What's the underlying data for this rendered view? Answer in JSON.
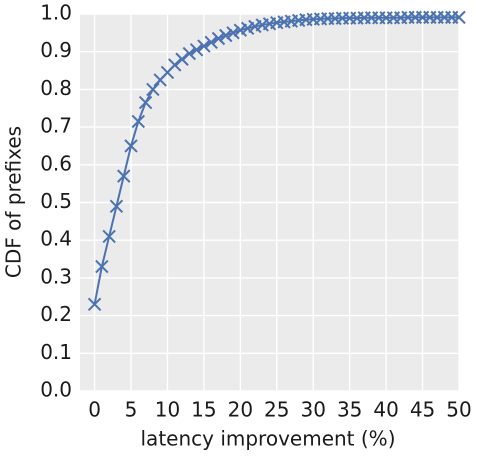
{
  "chart_data": {
    "type": "line",
    "x_label": "latency improvement (%)",
    "y_label": "CDF of prefixes",
    "x": [
      0,
      1,
      2,
      3,
      4,
      5,
      6,
      7,
      8,
      9,
      10,
      11,
      12,
      13,
      14,
      15,
      16,
      17,
      18,
      19,
      20,
      21,
      22,
      23,
      24,
      25,
      26,
      27,
      28,
      29,
      30,
      31,
      32,
      33,
      34,
      35,
      36,
      37,
      38,
      39,
      40,
      41,
      42,
      43,
      44,
      45,
      46,
      47,
      48,
      49,
      50
    ],
    "series": [
      {
        "name": "CDF",
        "color": "#4c72b0",
        "values": [
          0.23,
          0.33,
          0.41,
          0.49,
          0.57,
          0.65,
          0.715,
          0.765,
          0.8,
          0.825,
          0.845,
          0.865,
          0.88,
          0.895,
          0.905,
          0.915,
          0.925,
          0.935,
          0.943,
          0.95,
          0.957,
          0.962,
          0.967,
          0.971,
          0.974,
          0.977,
          0.979,
          0.981,
          0.983,
          0.985,
          0.986,
          0.987,
          0.988,
          0.988,
          0.989,
          0.989,
          0.989,
          0.99,
          0.99,
          0.99,
          0.99,
          0.99,
          0.99,
          0.991,
          0.991,
          0.991,
          0.991,
          0.991,
          0.991,
          0.991,
          0.991
        ]
      }
    ],
    "xlim": [
      -2,
      50
    ],
    "ylim": [
      0,
      1
    ],
    "xticks": [
      0,
      5,
      10,
      15,
      20,
      25,
      30,
      35,
      40,
      45,
      50
    ],
    "yticks": [
      {
        "value": 0,
        "label": "0.0"
      },
      0.1,
      0.2,
      0.3,
      0.4,
      0.5,
      0.6,
      0.7,
      0.8,
      0.9,
      {
        "value": 1,
        "label": "1.0"
      }
    ],
    "grid": true
  }
}
